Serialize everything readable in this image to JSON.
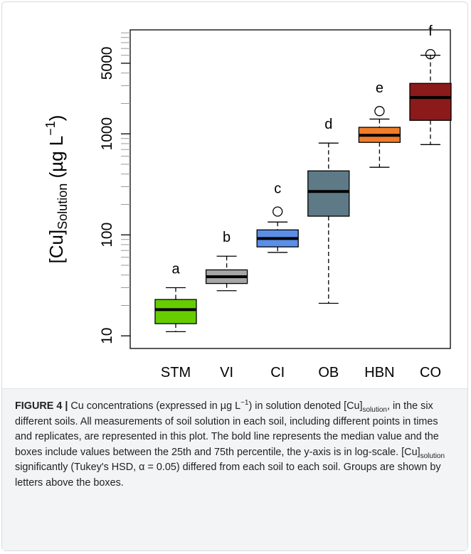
{
  "chart_data": {
    "type": "box",
    "ylabel": {
      "main": "[Cu]",
      "sub": "Solution",
      "unit": " (µg L",
      "sup": "−1",
      "end": ")"
    },
    "categories": [
      "STM",
      "VI",
      "CI",
      "OB",
      "HBN",
      "CO"
    ],
    "colors": [
      "#66cc00",
      "#a6a6a6",
      "#5b8ee6",
      "#5e7a87",
      "#f07d2a",
      "#8b1a1a"
    ],
    "letters": [
      "a",
      "b",
      "c",
      "d",
      "e",
      "f"
    ],
    "boxes": [
      {
        "low": 11,
        "q1": 13.2,
        "median": 18.2,
        "q3": 22.9,
        "high": 30,
        "outliers": []
      },
      {
        "low": 28,
        "q1": 33,
        "median": 38.5,
        "q3": 45,
        "high": 61.5,
        "outliers": []
      },
      {
        "low": 67,
        "q1": 76,
        "median": 92,
        "q3": 112,
        "high": 134,
        "outliers": [
          170
        ]
      },
      {
        "low": 21,
        "q1": 153,
        "median": 269,
        "q3": 430,
        "high": 810,
        "outliers": []
      },
      {
        "low": 467,
        "q1": 823,
        "median": 968,
        "q3": 1160,
        "high": 1400,
        "outliers": [
          1680
        ]
      },
      {
        "low": 783,
        "q1": 1360,
        "median": 2290,
        "q3": 3160,
        "high": 6000,
        "outliers": [
          6150
        ]
      }
    ],
    "ylim": [
      7.5,
      10700
    ],
    "log_y": true,
    "yticks": [
      10,
      100,
      1000,
      5000
    ],
    "yminorticks": [
      20,
      30,
      40,
      50,
      60,
      70,
      80,
      90,
      200,
      300,
      400,
      500,
      600,
      700,
      800,
      900,
      2000,
      3000,
      4000,
      6000,
      7000,
      8000,
      9000,
      10000
    ]
  },
  "caption": [
    {
      "format": "bold",
      "text": "FIGURE 4 |"
    },
    {
      "format": "normal",
      "text": " Cu concentrations (expressed in µg L"
    },
    {
      "format": "sup",
      "text": "−1"
    },
    {
      "format": "normal",
      "text": ") in solution denoted [Cu]"
    },
    {
      "format": "sub",
      "text": "solution"
    },
    {
      "format": "normal",
      "text": ", in the six different soils. All measurements of soil solution in each soil, including different points in times and replicates, are represented in this plot. The bold line represents the median value and the boxes include values between the 25th and 75th percentile, the y-axis is in log-scale. [Cu]"
    },
    {
      "format": "sub",
      "text": "solution"
    },
    {
      "format": "normal",
      "text": " significantly (Tukey's HSD, α = 0.05) differed from each soil to each soil. Groups are shown by letters above the boxes."
    }
  ]
}
